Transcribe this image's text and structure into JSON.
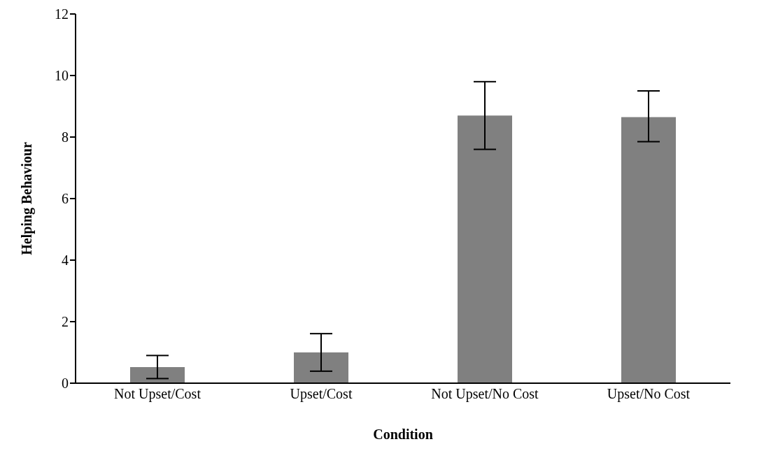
{
  "chart_data": {
    "type": "bar",
    "xlabel": "Condition",
    "ylabel": "Helping Behaviour",
    "categories": [
      "Not Upset/Cost",
      "Upset/Cost",
      "Not Upset/No Cost",
      "Upset/No Cost"
    ],
    "values": [
      0.52,
      1.0,
      8.7,
      8.65
    ],
    "errors": [
      [
        0.15,
        0.9
      ],
      [
        0.39,
        1.61
      ],
      [
        7.6,
        9.8
      ],
      [
        7.85,
        9.5
      ]
    ],
    "color": "#808080",
    "ylim": [
      0,
      12
    ],
    "yticks": [
      0,
      2,
      4,
      6,
      8,
      10,
      12
    ],
    "grid": false,
    "legend": false
  }
}
